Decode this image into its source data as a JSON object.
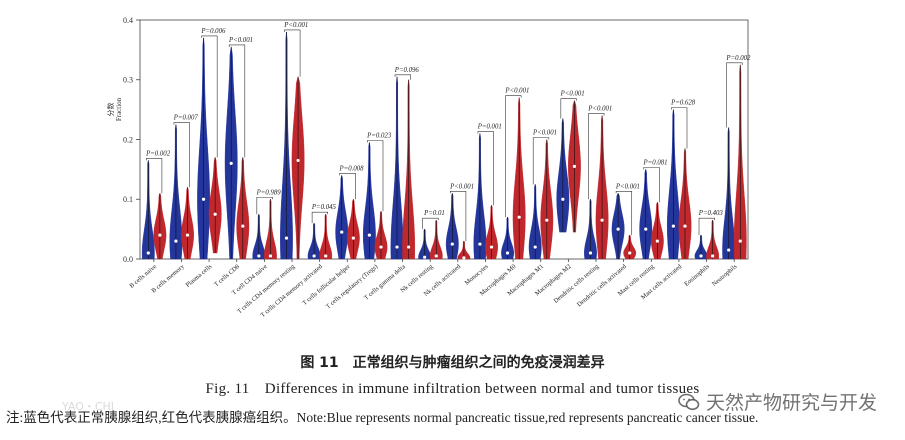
{
  "chart_data": {
    "type": "violin",
    "ylabel": "分数 Fraction",
    "ylabel_cn": "分数",
    "ylabel_en": "Fraction",
    "ylim": [
      0,
      0.4
    ],
    "yticks": [
      "0.0",
      "0.1",
      "0.2",
      "0.3",
      "0.4"
    ],
    "ytick_values": [
      0,
      0.1,
      0.2,
      0.3,
      0.4
    ],
    "series": [
      {
        "name": "Normal pancreatic tissue",
        "color": "#24359b"
      },
      {
        "name": "Pancreatic cancer tissue",
        "color": "#c0282d"
      }
    ],
    "categories": [
      {
        "name": "B cells naive",
        "p": "P=0.002",
        "normal": {
          "min": 0,
          "max": 0.165,
          "median": 0.01
        },
        "tumor": {
          "min": 0,
          "max": 0.11,
          "median": 0.04
        }
      },
      {
        "name": "B cells memory",
        "p": "P=0.007",
        "normal": {
          "min": 0,
          "max": 0.225,
          "median": 0.03
        },
        "tumor": {
          "min": 0,
          "max": 0.12,
          "median": 0.04
        }
      },
      {
        "name": "Plasma cells",
        "p": "P=0.006",
        "normal": {
          "min": 0,
          "max": 0.37,
          "median": 0.1
        },
        "tumor": {
          "min": 0.01,
          "max": 0.17,
          "median": 0.075
        }
      },
      {
        "name": "T cells CD8",
        "p": "P<0.001",
        "normal": {
          "min": 0,
          "max": 0.355,
          "median": 0.16
        },
        "tumor": {
          "min": 0,
          "max": 0.17,
          "median": 0.055
        }
      },
      {
        "name": "T cell CD4 naive",
        "p": "P=0.989",
        "normal": {
          "min": 0,
          "max": 0.075,
          "median": 0.005
        },
        "tumor": {
          "min": 0,
          "max": 0.1,
          "median": 0.005
        }
      },
      {
        "name": "T cells CD4 memory resting",
        "p": "P<0.001",
        "normal": {
          "min": 0,
          "max": 0.38,
          "median": 0.035
        },
        "tumor": {
          "min": 0,
          "max": 0.305,
          "median": 0.165
        }
      },
      {
        "name": "T cells CD4 memory activated",
        "p": "P=0.045",
        "normal": {
          "min": 0,
          "max": 0.06,
          "median": 0.005
        },
        "tumor": {
          "min": 0,
          "max": 0.075,
          "median": 0.005
        }
      },
      {
        "name": "T cells follicular helper",
        "p": "P=0.008",
        "normal": {
          "min": 0,
          "max": 0.14,
          "median": 0.045
        },
        "tumor": {
          "min": 0,
          "max": 0.1,
          "median": 0.035
        }
      },
      {
        "name": "T cells regulatory (Tregs)",
        "p": "P=0.023",
        "normal": {
          "min": 0,
          "max": 0.195,
          "median": 0.04
        },
        "tumor": {
          "min": 0,
          "max": 0.08,
          "median": 0.02
        }
      },
      {
        "name": "T cells gamma delta",
        "p": "P=0.096",
        "normal": {
          "min": 0,
          "max": 0.305,
          "median": 0.02
        },
        "tumor": {
          "min": 0,
          "max": 0.3,
          "median": 0.02
        }
      },
      {
        "name": "Nk cells resting",
        "p": "P=0.01",
        "normal": {
          "min": 0,
          "max": 0.05,
          "median": 0.003
        },
        "tumor": {
          "min": 0,
          "max": 0.065,
          "median": 0.005
        }
      },
      {
        "name": "Nk cells activated",
        "p": "P<0.001",
        "normal": {
          "min": 0,
          "max": 0.11,
          "median": 0.025
        },
        "tumor": {
          "min": 0,
          "max": 0.03,
          "median": 0.002
        }
      },
      {
        "name": "Monocytes",
        "p": "P=0.001",
        "normal": {
          "min": 0,
          "max": 0.21,
          "median": 0.025
        },
        "tumor": {
          "min": 0,
          "max": 0.09,
          "median": 0.02
        }
      },
      {
        "name": "Macrophages M0",
        "p": "P<0.001",
        "normal": {
          "min": 0,
          "max": 0.07,
          "median": 0.01
        },
        "tumor": {
          "min": 0,
          "max": 0.27,
          "median": 0.07
        }
      },
      {
        "name": "Macrophages M1",
        "p": "P<0.001",
        "normal": {
          "min": 0,
          "max": 0.125,
          "median": 0.02
        },
        "tumor": {
          "min": 0,
          "max": 0.2,
          "median": 0.065
        }
      },
      {
        "name": "Macrophages M2",
        "p": "P<0.001",
        "normal": {
          "min": 0.045,
          "max": 0.235,
          "median": 0.1
        },
        "tumor": {
          "min": 0.045,
          "max": 0.265,
          "median": 0.155
        }
      },
      {
        "name": "Dendritic cells resting",
        "p": "P<0.001",
        "normal": {
          "min": 0,
          "max": 0.1,
          "median": 0.01
        },
        "tumor": {
          "min": 0,
          "max": 0.24,
          "median": 0.065
        }
      },
      {
        "name": "Dendritic cells activated",
        "p": "P<0.001",
        "normal": {
          "min": 0,
          "max": 0.11,
          "median": 0.05
        },
        "tumor": {
          "min": 0,
          "max": 0.04,
          "median": 0.01
        }
      },
      {
        "name": "Mast cells resting",
        "p": "P=0.081",
        "normal": {
          "min": 0,
          "max": 0.15,
          "median": 0.05
        },
        "tumor": {
          "min": 0,
          "max": 0.095,
          "median": 0.03
        }
      },
      {
        "name": "Mast cells activated",
        "p": "P=0.628",
        "normal": {
          "min": 0,
          "max": 0.25,
          "median": 0.055
        },
        "tumor": {
          "min": 0,
          "max": 0.185,
          "median": 0.055
        }
      },
      {
        "name": "Eosinophils",
        "p": "P=0.403",
        "normal": {
          "min": 0,
          "max": 0.04,
          "median": 0.005
        },
        "tumor": {
          "min": 0,
          "max": 0.065,
          "median": 0.005
        }
      },
      {
        "name": "Neutrophils",
        "p": "P=0.002",
        "normal": {
          "min": 0,
          "max": 0.22,
          "median": 0.015
        },
        "tumor": {
          "min": 0,
          "max": 0.325,
          "median": 0.03
        }
      }
    ]
  },
  "caption": {
    "cn": "图 11　正常组织与肿瘤组织之间的免疫浸润差异",
    "en": "Fig. 11　Differences in immune infiltration between normal and tumor tissues",
    "note": "注:蓝色代表正常胰腺组织,红色代表胰腺癌组织。Note:Blue represents normal pancreatic tissue,red represents pancreatic cancer tissue."
  },
  "watermark": {
    "text": "天然产物研究与开发",
    "icon": "wechat-icon",
    "corner_text": "YAO・CHI"
  }
}
